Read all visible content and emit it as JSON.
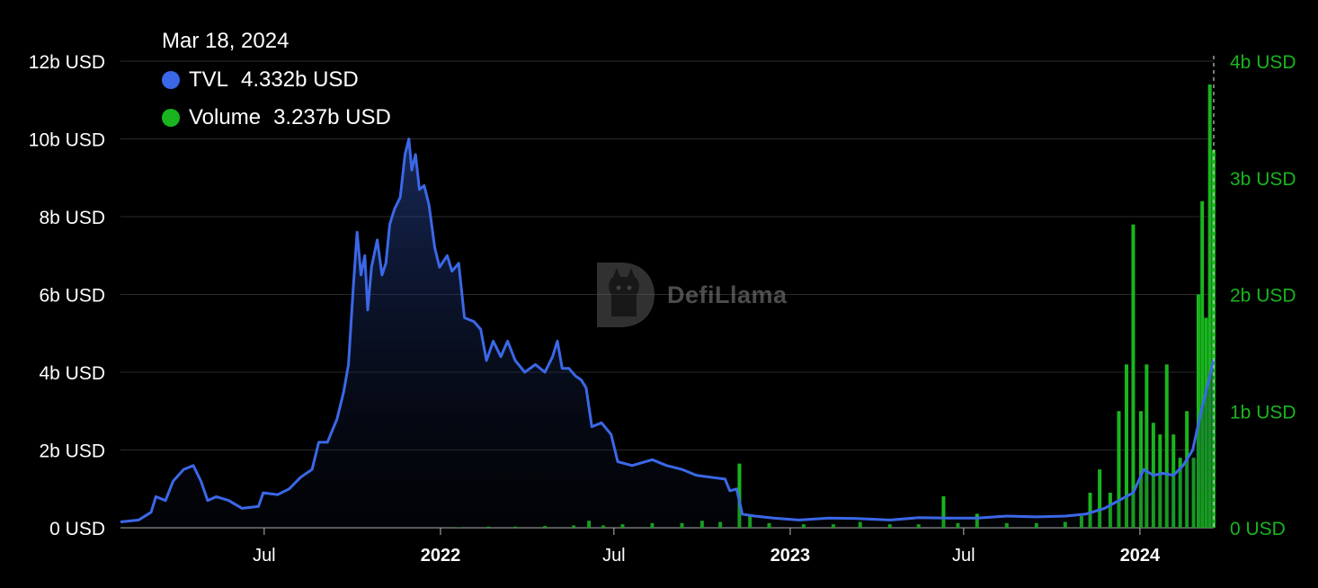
{
  "tooltip": {
    "date": "Mar 18, 2024",
    "tvl_label": "TVL",
    "tvl_value": "4.332b USD",
    "volume_label": "Volume",
    "volume_value": "3.237b USD"
  },
  "watermark": {
    "text": "DefiLlama",
    "icon": "llama-logo-icon"
  },
  "colors": {
    "tvl": "#3b68e8",
    "volume": "#19b51f",
    "grid": "#2a2a2a",
    "background": "#000000"
  },
  "chart_data": {
    "type": "line",
    "title": "",
    "x_range": [
      "2021-02-01",
      "2024-03-18"
    ],
    "y_left": {
      "min": 0,
      "max": 12,
      "unit": "billion USD",
      "ticks": [
        "0 USD",
        "2b USD",
        "4b USD",
        "6b USD",
        "8b USD",
        "10b USD",
        "12b USD"
      ]
    },
    "y_right": {
      "min": 0,
      "max": 4,
      "unit": "billion USD",
      "ticks": [
        "0 USD",
        "1b USD",
        "2b USD",
        "3b USD",
        "4b USD"
      ]
    },
    "x_ticks": [
      {
        "label": "Jul",
        "date": "2021-07-01",
        "bold": false
      },
      {
        "label": "2022",
        "date": "2022-01-01",
        "bold": true
      },
      {
        "label": "Jul",
        "date": "2022-07-01",
        "bold": false
      },
      {
        "label": "2023",
        "date": "2023-01-01",
        "bold": true
      },
      {
        "label": "Jul",
        "date": "2023-07-01",
        "bold": false
      },
      {
        "label": "2024",
        "date": "2024-01-01",
        "bold": true
      }
    ],
    "grid": true,
    "legend": "top-left",
    "series": [
      {
        "name": "TVL",
        "axis": "left",
        "kind": "area-line",
        "points": [
          [
            "2021-02-01",
            0.15
          ],
          [
            "2021-02-20",
            0.2
          ],
          [
            "2021-03-05",
            0.4
          ],
          [
            "2021-03-10",
            0.8
          ],
          [
            "2021-03-20",
            0.7
          ],
          [
            "2021-03-28",
            1.2
          ],
          [
            "2021-04-08",
            1.5
          ],
          [
            "2021-04-18",
            1.6
          ],
          [
            "2021-04-26",
            1.2
          ],
          [
            "2021-05-03",
            0.7
          ],
          [
            "2021-05-12",
            0.8
          ],
          [
            "2021-05-25",
            0.7
          ],
          [
            "2021-06-08",
            0.5
          ],
          [
            "2021-06-25",
            0.55
          ],
          [
            "2021-06-30",
            0.9
          ],
          [
            "2021-07-15",
            0.85
          ],
          [
            "2021-07-27",
            1.0
          ],
          [
            "2021-08-08",
            1.3
          ],
          [
            "2021-08-20",
            1.5
          ],
          [
            "2021-08-27",
            2.2
          ],
          [
            "2021-09-05",
            2.2
          ],
          [
            "2021-09-15",
            2.8
          ],
          [
            "2021-09-22",
            3.5
          ],
          [
            "2021-09-27",
            4.2
          ],
          [
            "2021-10-02",
            6.2
          ],
          [
            "2021-10-06",
            7.6
          ],
          [
            "2021-10-10",
            6.5
          ],
          [
            "2021-10-14",
            7.0
          ],
          [
            "2021-10-17",
            5.6
          ],
          [
            "2021-10-21",
            6.7
          ],
          [
            "2021-10-27",
            7.4
          ],
          [
            "2021-11-01",
            6.5
          ],
          [
            "2021-11-05",
            6.8
          ],
          [
            "2021-11-09",
            7.8
          ],
          [
            "2021-11-14",
            8.2
          ],
          [
            "2021-11-20",
            8.5
          ],
          [
            "2021-11-25",
            9.6
          ],
          [
            "2021-11-29",
            10.0
          ],
          [
            "2021-12-02",
            9.2
          ],
          [
            "2021-12-06",
            9.6
          ],
          [
            "2021-12-10",
            8.7
          ],
          [
            "2021-12-15",
            8.8
          ],
          [
            "2021-12-20",
            8.3
          ],
          [
            "2021-12-26",
            7.2
          ],
          [
            "2021-12-31",
            6.7
          ],
          [
            "2022-01-08",
            7.0
          ],
          [
            "2022-01-13",
            6.6
          ],
          [
            "2022-01-20",
            6.8
          ],
          [
            "2022-01-26",
            5.4
          ],
          [
            "2022-02-05",
            5.3
          ],
          [
            "2022-02-12",
            5.1
          ],
          [
            "2022-02-18",
            4.3
          ],
          [
            "2022-02-25",
            4.8
          ],
          [
            "2022-03-05",
            4.4
          ],
          [
            "2022-03-12",
            4.8
          ],
          [
            "2022-03-20",
            4.3
          ],
          [
            "2022-03-30",
            4.0
          ],
          [
            "2022-04-10",
            4.2
          ],
          [
            "2022-04-20",
            4.0
          ],
          [
            "2022-04-28",
            4.4
          ],
          [
            "2022-05-03",
            4.8
          ],
          [
            "2022-05-08",
            4.1
          ],
          [
            "2022-05-15",
            4.1
          ],
          [
            "2022-05-22",
            3.9
          ],
          [
            "2022-05-28",
            3.8
          ],
          [
            "2022-06-02",
            3.6
          ],
          [
            "2022-06-08",
            2.6
          ],
          [
            "2022-06-18",
            2.7
          ],
          [
            "2022-06-28",
            2.4
          ],
          [
            "2022-07-05",
            1.7
          ],
          [
            "2022-07-20",
            1.6
          ],
          [
            "2022-08-10",
            1.75
          ],
          [
            "2022-08-25",
            1.6
          ],
          [
            "2022-09-10",
            1.5
          ],
          [
            "2022-09-25",
            1.35
          ],
          [
            "2022-10-10",
            1.3
          ],
          [
            "2022-10-25",
            1.25
          ],
          [
            "2022-10-30",
            0.95
          ],
          [
            "2022-11-06",
            1.0
          ],
          [
            "2022-11-12",
            0.35
          ],
          [
            "2022-11-25",
            0.3
          ],
          [
            "2022-12-15",
            0.25
          ],
          [
            "2023-01-10",
            0.2
          ],
          [
            "2023-02-10",
            0.25
          ],
          [
            "2023-03-10",
            0.24
          ],
          [
            "2023-04-15",
            0.2
          ],
          [
            "2023-05-15",
            0.26
          ],
          [
            "2023-06-15",
            0.25
          ],
          [
            "2023-07-15",
            0.25
          ],
          [
            "2023-08-15",
            0.3
          ],
          [
            "2023-09-15",
            0.28
          ],
          [
            "2023-10-15",
            0.3
          ],
          [
            "2023-11-05",
            0.35
          ],
          [
            "2023-11-25",
            0.5
          ],
          [
            "2023-12-10",
            0.7
          ],
          [
            "2023-12-25",
            0.9
          ],
          [
            "2024-01-05",
            1.5
          ],
          [
            "2024-01-15",
            1.35
          ],
          [
            "2024-01-25",
            1.4
          ],
          [
            "2024-02-05",
            1.35
          ],
          [
            "2024-02-15",
            1.6
          ],
          [
            "2024-02-25",
            2.0
          ],
          [
            "2024-03-05",
            3.0
          ],
          [
            "2024-03-12",
            3.7
          ],
          [
            "2024-03-18",
            4.332
          ]
        ]
      },
      {
        "name": "Volume",
        "axis": "right",
        "kind": "bars",
        "points": [
          [
            "2022-01-20",
            0.005
          ],
          [
            "2022-02-20",
            0.01
          ],
          [
            "2022-03-20",
            0.01
          ],
          [
            "2022-04-20",
            0.015
          ],
          [
            "2022-05-20",
            0.02
          ],
          [
            "2022-06-05",
            0.06
          ],
          [
            "2022-06-20",
            0.02
          ],
          [
            "2022-07-10",
            0.03
          ],
          [
            "2022-08-10",
            0.04
          ],
          [
            "2022-09-10",
            0.04
          ],
          [
            "2022-10-01",
            0.06
          ],
          [
            "2022-10-20",
            0.05
          ],
          [
            "2022-11-09",
            0.55
          ],
          [
            "2022-11-20",
            0.1
          ],
          [
            "2022-12-10",
            0.04
          ],
          [
            "2023-01-15",
            0.03
          ],
          [
            "2023-02-15",
            0.03
          ],
          [
            "2023-03-15",
            0.05
          ],
          [
            "2023-04-15",
            0.03
          ],
          [
            "2023-05-15",
            0.03
          ],
          [
            "2023-06-10",
            0.27
          ],
          [
            "2023-06-25",
            0.04
          ],
          [
            "2023-07-15",
            0.12
          ],
          [
            "2023-08-15",
            0.04
          ],
          [
            "2023-09-15",
            0.04
          ],
          [
            "2023-10-15",
            0.05
          ],
          [
            "2023-11-01",
            0.1
          ],
          [
            "2023-11-10",
            0.3
          ],
          [
            "2023-11-20",
            0.5
          ],
          [
            "2023-12-01",
            0.3
          ],
          [
            "2023-12-10",
            1.0
          ],
          [
            "2023-12-18",
            1.4
          ],
          [
            "2023-12-25",
            2.6
          ],
          [
            "2024-01-02",
            1.0
          ],
          [
            "2024-01-08",
            1.4
          ],
          [
            "2024-01-15",
            0.9
          ],
          [
            "2024-01-22",
            0.8
          ],
          [
            "2024-01-29",
            1.4
          ],
          [
            "2024-02-05",
            0.8
          ],
          [
            "2024-02-12",
            0.6
          ],
          [
            "2024-02-19",
            1.0
          ],
          [
            "2024-02-26",
            0.6
          ],
          [
            "2024-03-02",
            2.0
          ],
          [
            "2024-03-06",
            2.8
          ],
          [
            "2024-03-10",
            1.8
          ],
          [
            "2024-03-14",
            3.8
          ],
          [
            "2024-03-18",
            3.237
          ]
        ]
      }
    ]
  }
}
